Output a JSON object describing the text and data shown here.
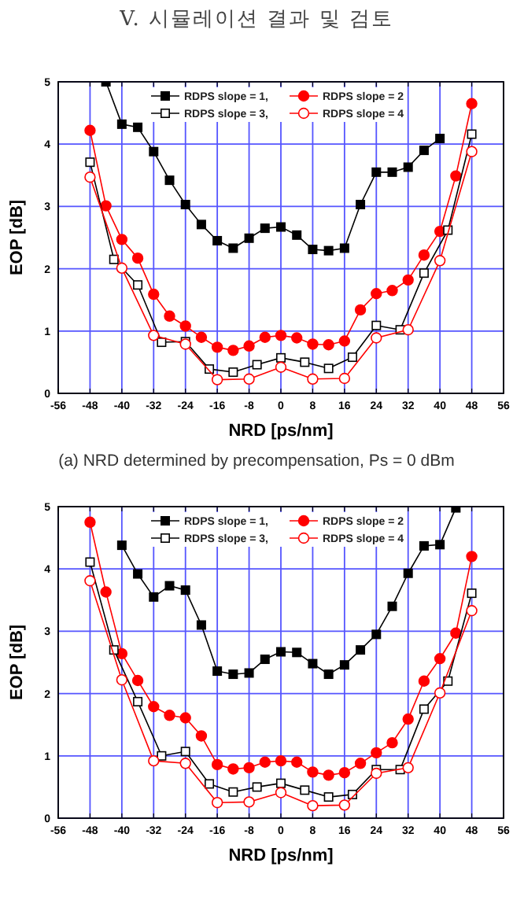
{
  "chart_data": [
    {
      "type": "line",
      "title": "V. 시뮬레이션 결과 및 검토",
      "xlabel": "NRD [ps/nm]",
      "ylabel": "EOP [dB]",
      "annotations": [
        "(a) NRD determined by precompensation, Ps = 0 dBm"
      ],
      "xlim": [
        -56,
        56
      ],
      "ylim": [
        0,
        5
      ],
      "xticks": [
        -56,
        -48,
        -40,
        -32,
        -24,
        -16,
        -8,
        0,
        8,
        16,
        24,
        32,
        40,
        48,
        56
      ],
      "yticks": [
        0,
        1,
        2,
        3,
        4,
        5
      ],
      "grid": true,
      "legend": "top",
      "series": [
        {
          "name": "RDPS slope = 1,",
          "color": "#000000",
          "marker": "square",
          "x": [
            -44,
            -40,
            -36,
            -32,
            -28,
            -24,
            -20,
            -16,
            -12,
            -8,
            -4,
            0,
            4,
            8,
            12,
            16,
            20,
            24,
            28,
            32,
            36,
            40
          ],
          "values": [
            5.0,
            4.32,
            4.27,
            3.88,
            3.42,
            3.03,
            2.71,
            2.45,
            2.33,
            2.49,
            2.65,
            2.67,
            2.54,
            2.31,
            2.29,
            2.33,
            3.03,
            3.55,
            3.55,
            3.63,
            3.9,
            4.09
          ]
        },
        {
          "name": "RDPS slope = 2",
          "color": "#ff0000",
          "marker": "circle",
          "x": [
            -48,
            -44,
            -40,
            -36,
            -32,
            -28,
            -24,
            -20,
            -16,
            -12,
            -8,
            -4,
            0,
            4,
            8,
            12,
            16,
            20,
            24,
            28,
            32,
            36,
            40,
            44,
            48
          ],
          "values": [
            4.22,
            3.01,
            2.47,
            2.17,
            1.59,
            1.24,
            1.08,
            0.9,
            0.74,
            0.69,
            0.76,
            0.9,
            0.93,
            0.89,
            0.79,
            0.78,
            0.84,
            1.34,
            1.6,
            1.65,
            1.82,
            2.22,
            2.6,
            3.49,
            4.65
          ]
        },
        {
          "name": "RDPS slope = 3,",
          "color": "#000000",
          "marker": "square",
          "x": [
            -48,
            -42,
            -36,
            -30,
            -24,
            -18,
            -12,
            -6,
            0,
            6,
            12,
            18,
            24,
            30,
            36,
            42,
            48
          ],
          "values": [
            3.71,
            2.15,
            1.74,
            0.82,
            0.83,
            0.39,
            0.34,
            0.46,
            0.57,
            0.5,
            0.4,
            0.58,
            1.09,
            1.02,
            1.93,
            2.62,
            4.16
          ]
        },
        {
          "name": "RDPS slope = 4",
          "color": "#ff0000",
          "marker": "circle",
          "x": [
            -48,
            -40,
            -32,
            -24,
            -16,
            -8,
            0,
            8,
            16,
            24,
            32,
            40,
            48
          ],
          "values": [
            3.47,
            2.01,
            0.93,
            0.79,
            0.22,
            0.23,
            0.42,
            0.23,
            0.24,
            0.89,
            1.02,
            2.13,
            3.88
          ]
        }
      ]
    },
    {
      "type": "line",
      "xlabel": "NRD [ps/nm]",
      "ylabel": "EOP [dB]",
      "xlim": [
        -56,
        56
      ],
      "ylim": [
        0,
        5
      ],
      "xticks": [
        -56,
        -48,
        -40,
        -32,
        -24,
        -16,
        -8,
        0,
        8,
        16,
        24,
        32,
        40,
        48,
        56
      ],
      "yticks": [
        0,
        1,
        2,
        3,
        4,
        5
      ],
      "grid": true,
      "legend": "top",
      "series": [
        {
          "name": "RDPS slope = 1,",
          "color": "#000000",
          "marker": "square",
          "x": [
            -40,
            -36,
            -32,
            -28,
            -24,
            -20,
            -16,
            -12,
            -8,
            -4,
            0,
            4,
            8,
            12,
            16,
            20,
            24,
            28,
            32,
            36,
            40,
            44
          ],
          "values": [
            4.38,
            3.92,
            3.55,
            3.73,
            3.66,
            3.1,
            2.36,
            2.31,
            2.33,
            2.55,
            2.67,
            2.66,
            2.48,
            2.31,
            2.46,
            2.7,
            2.95,
            3.4,
            3.93,
            4.37,
            4.39,
            4.98
          ]
        },
        {
          "name": "RDPS slope = 2",
          "color": "#ff0000",
          "marker": "circle",
          "x": [
            -48,
            -44,
            -40,
            -36,
            -32,
            -28,
            -24,
            -20,
            -16,
            -12,
            -8,
            -4,
            0,
            4,
            8,
            12,
            16,
            20,
            24,
            28,
            32,
            36,
            40,
            44,
            48
          ],
          "values": [
            4.75,
            3.63,
            2.64,
            2.21,
            1.79,
            1.65,
            1.61,
            1.32,
            0.86,
            0.79,
            0.81,
            0.9,
            0.92,
            0.9,
            0.74,
            0.69,
            0.73,
            0.88,
            1.05,
            1.21,
            1.59,
            2.2,
            2.56,
            2.97,
            4.2
          ]
        },
        {
          "name": "RDPS slope = 3,",
          "color": "#000000",
          "marker": "square",
          "x": [
            -48,
            -42,
            -36,
            -30,
            -24,
            -18,
            -12,
            -6,
            0,
            6,
            12,
            18,
            24,
            30,
            36,
            42,
            48
          ],
          "values": [
            4.11,
            2.7,
            1.87,
            1.0,
            1.07,
            0.55,
            0.42,
            0.5,
            0.56,
            0.45,
            0.34,
            0.38,
            0.78,
            0.78,
            1.75,
            2.2,
            3.61
          ]
        },
        {
          "name": "RDPS slope = 4",
          "color": "#ff0000",
          "marker": "circle",
          "x": [
            -48,
            -40,
            -32,
            -24,
            -16,
            -8,
            0,
            8,
            16,
            24,
            32,
            40,
            48
          ],
          "values": [
            3.81,
            2.22,
            0.92,
            0.88,
            0.25,
            0.26,
            0.41,
            0.2,
            0.21,
            0.72,
            0.81,
            2.01,
            3.33
          ]
        }
      ]
    }
  ]
}
